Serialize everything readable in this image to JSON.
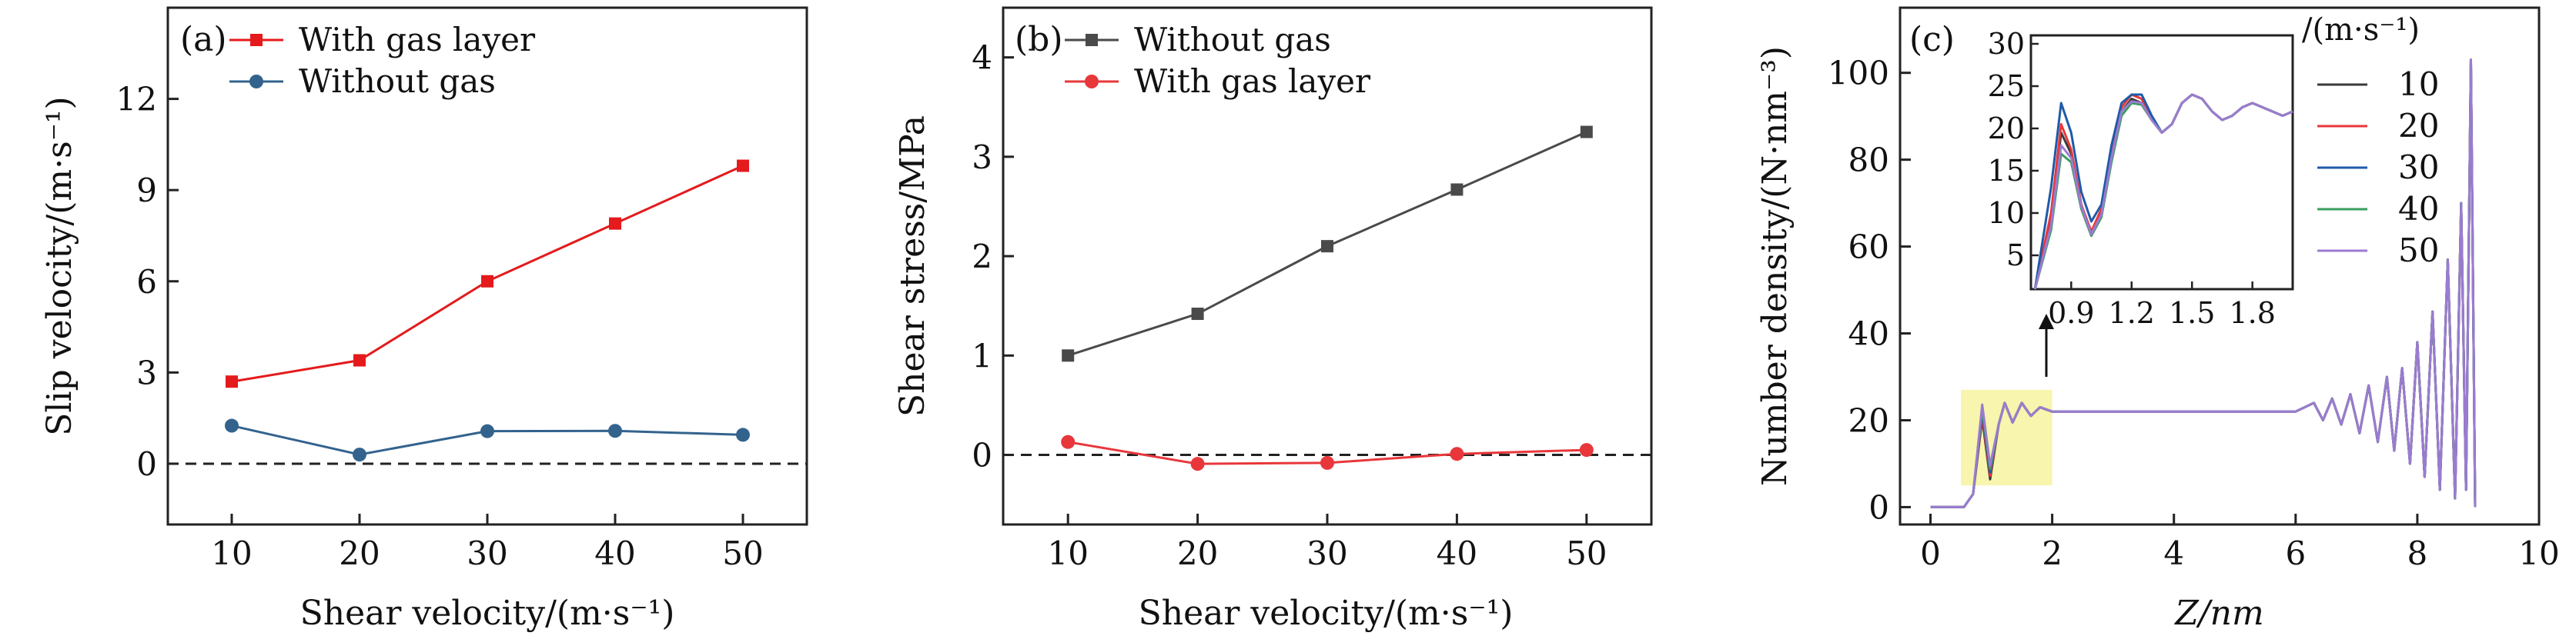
{
  "chart_data": [
    {
      "panel": "(a)",
      "type": "line",
      "xlabel": "Shear velocity/(m·s⁻¹)",
      "ylabel": "Slip velocity/(m·s⁻¹)",
      "xlim": [
        5,
        55
      ],
      "ylim": [
        -2,
        15
      ],
      "x_ticks": [
        10,
        20,
        30,
        40,
        50
      ],
      "y_ticks": [
        0,
        3,
        6,
        9,
        12
      ],
      "reference_line": 0,
      "x": [
        10,
        20,
        30,
        40,
        50
      ],
      "series": [
        {
          "name": "With gas layer",
          "color": "#e41a1c",
          "marker": "square",
          "values": [
            2.7,
            3.4,
            6.0,
            7.9,
            9.8
          ]
        },
        {
          "name": "Without gas",
          "color": "#33638d",
          "marker": "circle",
          "values": [
            1.25,
            0.3,
            1.07,
            1.08,
            0.95
          ]
        }
      ]
    },
    {
      "panel": "(b)",
      "type": "line",
      "xlabel": "Shear velocity/(m·s⁻¹)",
      "ylabel": "Shear stress/MPa",
      "xlim": [
        5,
        55
      ],
      "ylim": [
        -0.7,
        4.5
      ],
      "x_ticks": [
        10,
        20,
        30,
        40,
        50
      ],
      "y_ticks": [
        0,
        1,
        2,
        3,
        4
      ],
      "reference_line": 0,
      "x": [
        10,
        20,
        30,
        40,
        50
      ],
      "series": [
        {
          "name": "Without gas",
          "color": "#4a4a4a",
          "marker": "square",
          "values": [
            1.0,
            1.42,
            2.1,
            2.67,
            3.25
          ]
        },
        {
          "name": "With gas layer",
          "color": "#e8373a",
          "marker": "circle",
          "values": [
            0.13,
            -0.09,
            -0.08,
            0.01,
            0.05
          ]
        }
      ]
    },
    {
      "panel": "(c)",
      "type": "line",
      "xlabel": "Z/nm",
      "ylabel": "Number density/(N·nm⁻³)",
      "xlim": [
        -0.5,
        10
      ],
      "ylim": [
        -4,
        115
      ],
      "x_ticks": [
        0,
        2,
        4,
        6,
        8,
        10
      ],
      "y_ticks": [
        0,
        20,
        40,
        60,
        80,
        100
      ],
      "legend_title": "/(m·s⁻¹)",
      "highlight": {
        "x": [
          0.5,
          2.0
        ],
        "y": [
          5,
          27
        ]
      },
      "series": [
        {
          "name": "10",
          "color": "#3a3a3a"
        },
        {
          "name": "20",
          "color": "#e8373a"
        },
        {
          "name": "30",
          "color": "#1f5aa8"
        },
        {
          "name": "40",
          "color": "#3a9d5d"
        },
        {
          "name": "50",
          "color": "#9b7bd0"
        }
      ],
      "profile_points": [
        [
          0.0,
          0.0
        ],
        [
          0.55,
          0.0
        ],
        [
          0.7,
          3.0
        ],
        [
          0.85,
          22.0
        ],
        [
          0.98,
          8.0
        ],
        [
          1.12,
          19.0
        ],
        [
          1.22,
          24.0
        ],
        [
          1.35,
          19.5
        ],
        [
          1.5,
          24.0
        ],
        [
          1.65,
          21.0
        ],
        [
          1.8,
          23.0
        ],
        [
          2.0,
          22.0
        ],
        [
          6.0,
          22.0
        ],
        [
          6.3,
          24.0
        ],
        [
          6.45,
          20.0
        ],
        [
          6.6,
          25.0
        ],
        [
          6.75,
          19.0
        ],
        [
          6.9,
          26.0
        ],
        [
          7.05,
          17.0
        ],
        [
          7.2,
          28.0
        ],
        [
          7.35,
          15.0
        ],
        [
          7.5,
          30.0
        ],
        [
          7.62,
          13.0
        ],
        [
          7.75,
          32.0
        ],
        [
          7.88,
          10.0
        ],
        [
          8.0,
          38.0
        ],
        [
          8.12,
          7.0
        ],
        [
          8.25,
          45.0
        ],
        [
          8.37,
          4.0
        ],
        [
          8.5,
          57.0
        ],
        [
          8.62,
          2.0
        ],
        [
          8.72,
          70.0
        ],
        [
          8.8,
          4.0
        ],
        [
          8.88,
          103.0
        ],
        [
          8.95,
          0.0
        ]
      ],
      "inset": {
        "xlim": [
          0.7,
          2.0
        ],
        "ylim": [
          1,
          31
        ],
        "x_ticks": [
          0.9,
          1.2,
          1.5,
          1.8
        ],
        "y_ticks": [
          5,
          10,
          15,
          20,
          25,
          30
        ],
        "series_values": [
          {
            "name": "10",
            "points": [
              [
                0.72,
                0
              ],
              [
                0.8,
                9
              ],
              [
                0.85,
                19.5
              ],
              [
                0.9,
                17
              ],
              [
                0.95,
                11
              ],
              [
                1.0,
                7.5
              ],
              [
                1.05,
                10
              ],
              [
                1.1,
                17
              ],
              [
                1.15,
                22
              ],
              [
                1.2,
                23.5
              ],
              [
                1.25,
                23
              ],
              [
                1.3,
                21
              ],
              [
                1.35,
                19.5
              ],
              [
                1.4,
                20.5
              ],
              [
                1.45,
                23
              ],
              [
                1.5,
                24
              ],
              [
                1.55,
                23.5
              ],
              [
                1.6,
                22
              ],
              [
                1.65,
                21
              ],
              [
                1.7,
                21.5
              ],
              [
                1.75,
                22.5
              ],
              [
                1.8,
                23
              ],
              [
                1.85,
                22.5
              ],
              [
                1.9,
                22
              ],
              [
                1.95,
                21.5
              ],
              [
                2.0,
                22
              ]
            ]
          },
          {
            "name": "20",
            "points": [
              [
                0.72,
                0
              ],
              [
                0.8,
                10
              ],
              [
                0.85,
                20.5
              ],
              [
                0.9,
                17.5
              ],
              [
                0.95,
                11
              ],
              [
                1.0,
                7.8
              ],
              [
                1.05,
                10.5
              ],
              [
                1.1,
                17.5
              ],
              [
                1.15,
                22.5
              ],
              [
                1.2,
                24
              ],
              [
                1.25,
                23.5
              ],
              [
                1.3,
                21
              ],
              [
                1.35,
                19.5
              ],
              [
                1.4,
                20.5
              ],
              [
                1.45,
                23
              ],
              [
                1.5,
                24
              ],
              [
                1.55,
                23.5
              ],
              [
                1.6,
                22
              ],
              [
                1.65,
                21
              ],
              [
                1.7,
                21.5
              ],
              [
                1.75,
                22.5
              ],
              [
                1.8,
                23
              ],
              [
                1.85,
                22.5
              ],
              [
                1.9,
                22
              ],
              [
                1.95,
                21.5
              ],
              [
                2.0,
                22
              ]
            ]
          },
          {
            "name": "30",
            "points": [
              [
                0.72,
                0
              ],
              [
                0.8,
                13
              ],
              [
                0.85,
                23
              ],
              [
                0.9,
                19.5
              ],
              [
                0.95,
                12.5
              ],
              [
                1.0,
                9
              ],
              [
                1.05,
                11
              ],
              [
                1.1,
                18
              ],
              [
                1.15,
                23
              ],
              [
                1.2,
                24
              ],
              [
                1.25,
                24
              ],
              [
                1.3,
                21.5
              ],
              [
                1.35,
                19.5
              ],
              [
                1.4,
                20.5
              ],
              [
                1.45,
                23
              ],
              [
                1.5,
                24
              ],
              [
                1.55,
                23.5
              ],
              [
                1.6,
                22
              ],
              [
                1.65,
                21
              ],
              [
                1.7,
                21.5
              ],
              [
                1.75,
                22.5
              ],
              [
                1.8,
                23
              ],
              [
                1.85,
                22.5
              ],
              [
                1.9,
                22
              ],
              [
                1.95,
                21.5
              ],
              [
                2.0,
                22
              ]
            ]
          },
          {
            "name": "40",
            "points": [
              [
                0.72,
                0
              ],
              [
                0.8,
                8
              ],
              [
                0.85,
                17
              ],
              [
                0.9,
                16
              ],
              [
                0.95,
                10.5
              ],
              [
                1.0,
                7.3
              ],
              [
                1.05,
                9.5
              ],
              [
                1.1,
                16
              ],
              [
                1.15,
                21.5
              ],
              [
                1.2,
                23
              ],
              [
                1.25,
                22.8
              ],
              [
                1.3,
                21
              ],
              [
                1.35,
                19.5
              ],
              [
                1.4,
                20.5
              ],
              [
                1.45,
                23
              ],
              [
                1.5,
                24
              ],
              [
                1.55,
                23.5
              ],
              [
                1.6,
                22
              ],
              [
                1.65,
                21
              ],
              [
                1.7,
                21.5
              ],
              [
                1.75,
                22.5
              ],
              [
                1.8,
                23
              ],
              [
                1.85,
                22.5
              ],
              [
                1.9,
                22
              ],
              [
                1.95,
                21.5
              ],
              [
                2.0,
                22
              ]
            ]
          },
          {
            "name": "50",
            "points": [
              [
                0.72,
                0
              ],
              [
                0.8,
                8.5
              ],
              [
                0.85,
                18
              ],
              [
                0.9,
                16.5
              ],
              [
                0.95,
                10.8
              ],
              [
                1.0,
                7.5
              ],
              [
                1.05,
                9.8
              ],
              [
                1.1,
                16.5
              ],
              [
                1.15,
                22
              ],
              [
                1.2,
                23.2
              ],
              [
                1.25,
                23
              ],
              [
                1.3,
                21
              ],
              [
                1.35,
                19.5
              ],
              [
                1.4,
                20.5
              ],
              [
                1.45,
                23
              ],
              [
                1.5,
                24
              ],
              [
                1.55,
                23.5
              ],
              [
                1.6,
                22
              ],
              [
                1.65,
                21
              ],
              [
                1.7,
                21.5
              ],
              [
                1.75,
                22.5
              ],
              [
                1.8,
                23
              ],
              [
                1.85,
                22.5
              ],
              [
                1.9,
                22
              ],
              [
                1.95,
                21.5
              ],
              [
                2.0,
                22
              ]
            ]
          }
        ]
      }
    }
  ]
}
